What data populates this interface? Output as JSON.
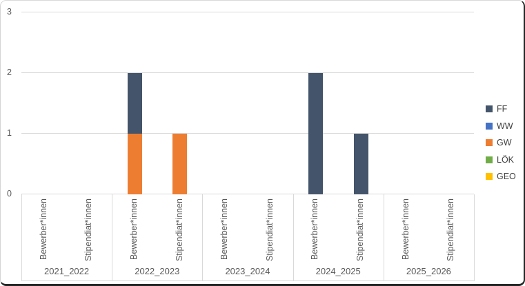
{
  "chart_data": {
    "type": "bar",
    "stacked": true,
    "title": "",
    "grid": true,
    "legend_position": "right",
    "groups": [
      "2021_2022",
      "2022_2023",
      "2023_2024",
      "2024_2025",
      "2025_2026"
    ],
    "subcategories": [
      "Bewerber*innen",
      "Stipendiat*innen"
    ],
    "series": [
      {
        "name": "FF",
        "color": "#44546A",
        "values": [
          [
            0,
            0
          ],
          [
            1,
            0
          ],
          [
            0,
            0
          ],
          [
            2,
            1
          ],
          [
            0,
            0
          ]
        ]
      },
      {
        "name": "WW",
        "color": "#4472C4",
        "values": [
          [
            0,
            0
          ],
          [
            0,
            0
          ],
          [
            0,
            0
          ],
          [
            0,
            0
          ],
          [
            0,
            0
          ]
        ]
      },
      {
        "name": "GW",
        "color": "#ED7D31",
        "values": [
          [
            0,
            0
          ],
          [
            1,
            1
          ],
          [
            0,
            0
          ],
          [
            0,
            0
          ],
          [
            0,
            0
          ]
        ]
      },
      {
        "name": "LÖK",
        "color": "#70AD47",
        "values": [
          [
            0,
            0
          ],
          [
            0,
            0
          ],
          [
            0,
            0
          ],
          [
            0,
            0
          ],
          [
            0,
            0
          ]
        ]
      },
      {
        "name": "GEO",
        "color": "#FFC000",
        "values": [
          [
            0,
            0
          ],
          [
            0,
            0
          ],
          [
            0,
            0
          ],
          [
            0,
            0
          ],
          [
            0,
            0
          ]
        ]
      }
    ],
    "y_axis": {
      "min": 0,
      "max": 3,
      "ticks": [
        0,
        1,
        2,
        3
      ]
    }
  },
  "colors": {
    "gridline": "#D9D9D9",
    "axis_text": "#595959",
    "legend_text": "#404040",
    "plot_background": "#FFFFFF"
  }
}
